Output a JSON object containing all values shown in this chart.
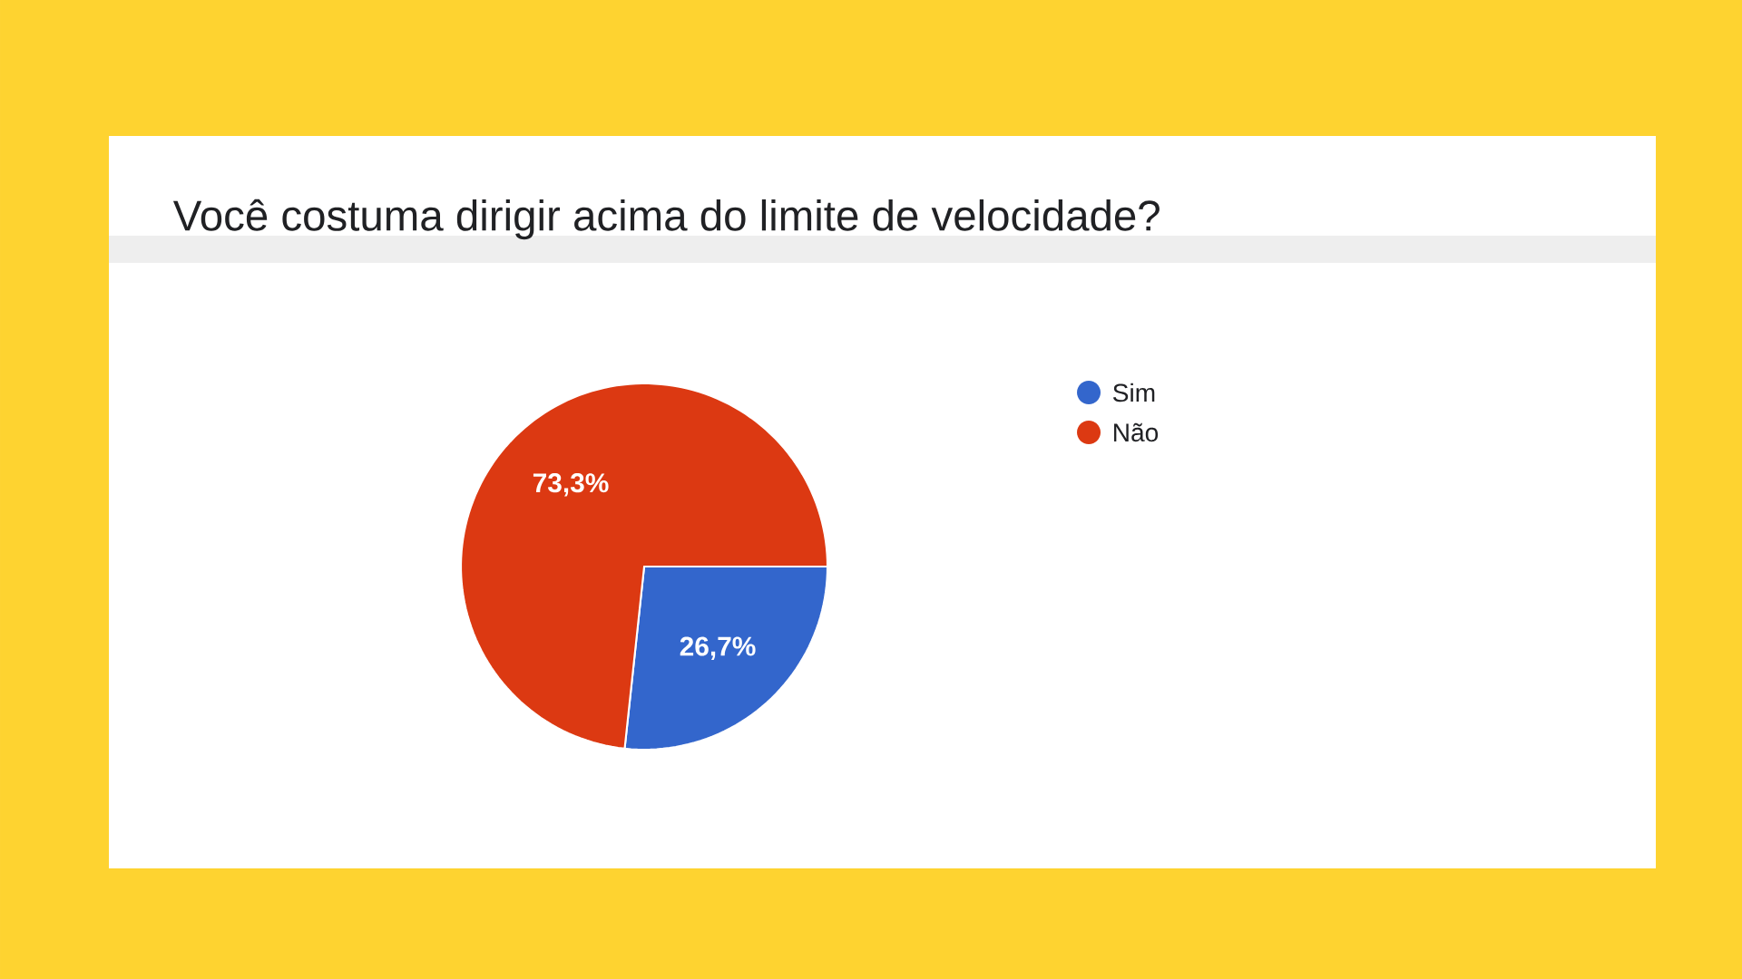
{
  "chart_data": {
    "type": "pie",
    "title": "Você costuma dirigir acima do limite de velocidade?",
    "categories": [
      "Sim",
      "Não"
    ],
    "values": [
      26.7,
      73.3
    ],
    "colors": [
      "#3366cc",
      "#dc3912"
    ],
    "value_labels": [
      "26,7%",
      "73,3%"
    ],
    "legend": "right"
  }
}
